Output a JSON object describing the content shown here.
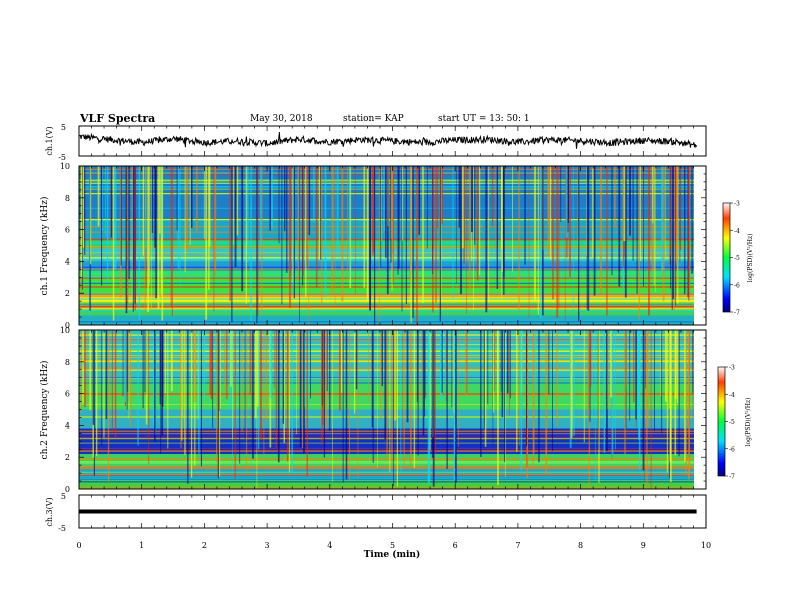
{
  "header": {
    "title": "VLF Spectra",
    "date": "May 30, 2018",
    "station": "station= KAP",
    "start_ut": "start  UT =   13: 50: 1"
  },
  "chart_data": [
    {
      "type": "line",
      "panel": "waveform-ch1",
      "ylabel": "ch.1(V)",
      "ylim": [
        -5,
        5
      ],
      "yticks": [
        "5",
        "-5"
      ],
      "xlim": [
        0,
        10
      ],
      "x": [
        0,
        0.5,
        1,
        1.5,
        2,
        2.5,
        3,
        3.5,
        4,
        4.5,
        5,
        5.5,
        6,
        6.5,
        7,
        7.5,
        8,
        8.5,
        9,
        9.5,
        9.85
      ],
      "y": [
        1.5,
        0.5,
        -0.5,
        0.8,
        -0.5,
        0.0,
        -0.8,
        0.6,
        -0.3,
        0.5,
        0.0,
        -0.5,
        0.3,
        0.6,
        -0.4,
        0.4,
        0.1,
        -0.6,
        0.2,
        -0.2,
        -1.5
      ],
      "color": "#000000"
    },
    {
      "type": "heatmap",
      "panel": "spectrogram-ch1",
      "ylabel": "ch.1 Frequency  (kHz)",
      "ylim": [
        0,
        10
      ],
      "yticks": [
        "0",
        "2",
        "4",
        "6",
        "8",
        "10"
      ],
      "xlim": [
        0,
        10
      ],
      "colorbar": {
        "label": "log(PSD)(V²/Hz)",
        "range": [
          -7,
          -3
        ],
        "ticks": [
          "-3",
          "-4",
          "-5",
          "-6",
          "-7"
        ]
      }
    },
    {
      "type": "heatmap",
      "panel": "spectrogram-ch2",
      "ylabel": "ch.2 Frequency  (kHz)",
      "ylim": [
        0,
        10
      ],
      "yticks": [
        "0",
        "2",
        "4",
        "6",
        "8",
        "10"
      ],
      "xlim": [
        0,
        10
      ],
      "colorbar": {
        "label": "log(PSD)(V²/Hz)",
        "range": [
          -7,
          -3
        ],
        "ticks": [
          "-3",
          "-4",
          "-5",
          "-6",
          "-7"
        ]
      }
    },
    {
      "type": "line",
      "panel": "waveform-ch3",
      "ylabel": "ch.3(V)",
      "ylim": [
        -5,
        5
      ],
      "yticks": [
        "5",
        "-5"
      ],
      "xlim": [
        0,
        10
      ],
      "x": [
        0,
        9.85
      ],
      "y": [
        0,
        0
      ],
      "color": "#000000"
    }
  ],
  "xaxis": {
    "label": "Time  (min)",
    "ticks": [
      "0",
      "1",
      "2",
      "3",
      "4",
      "5",
      "6",
      "7",
      "8",
      "9",
      "10"
    ]
  }
}
